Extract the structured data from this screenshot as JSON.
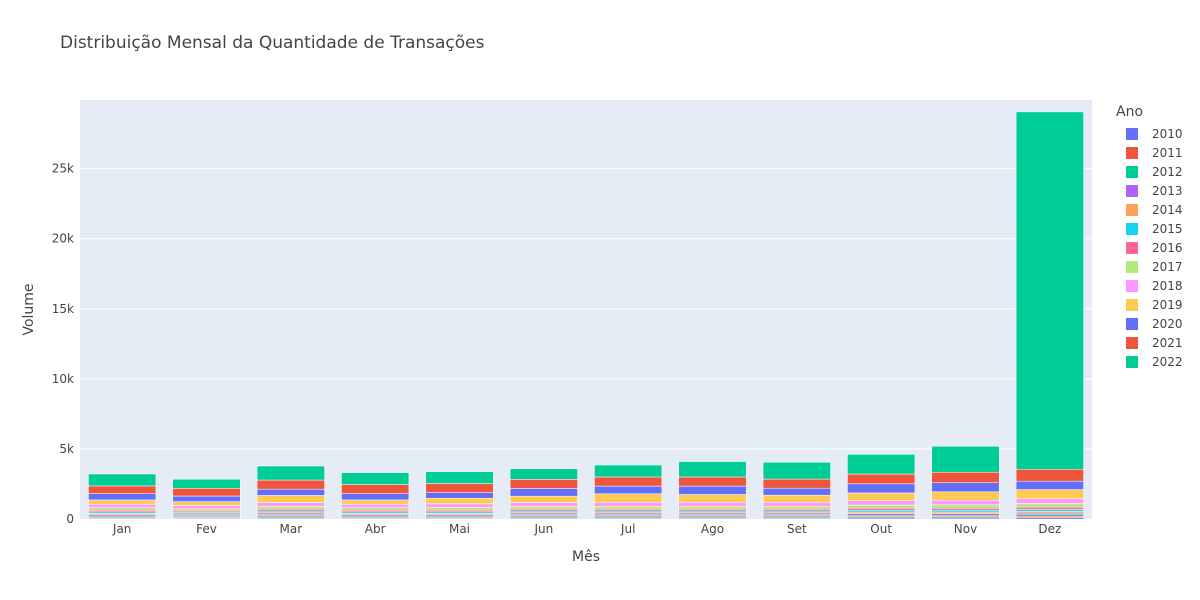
{
  "chart_data": {
    "type": "bar",
    "stacked": true,
    "title": "Distribuição Mensal da Quantidade de Transações",
    "xlabel": "Mês",
    "ylabel": "Volume",
    "legend_title": "Ano",
    "legend_position": "right",
    "grid": true,
    "ylim": [
      0,
      29900
    ],
    "yticks": [
      0,
      5000,
      10000,
      15000,
      20000,
      25000
    ],
    "ytick_labels": [
      "0",
      "5k",
      "10k",
      "15k",
      "20k",
      "25k"
    ],
    "categories": [
      "Jan",
      "Fev",
      "Mar",
      "Abr",
      "Mai",
      "Jun",
      "Jul",
      "Ago",
      "Set",
      "Out",
      "Nov",
      "Dez"
    ],
    "series": [
      {
        "name": "2010",
        "color": "#636efa",
        "values": [
          60,
          60,
          70,
          60,
          60,
          70,
          70,
          70,
          70,
          80,
          80,
          90
        ]
      },
      {
        "name": "2011",
        "color": "#ef553b",
        "values": [
          70,
          60,
          80,
          70,
          70,
          80,
          80,
          80,
          80,
          90,
          90,
          100
        ]
      },
      {
        "name": "2012",
        "color": "#00cc96",
        "values": [
          80,
          70,
          90,
          80,
          80,
          90,
          90,
          90,
          90,
          100,
          100,
          110
        ]
      },
      {
        "name": "2013",
        "color": "#ab63fa",
        "values": [
          90,
          80,
          100,
          90,
          90,
          100,
          100,
          100,
          100,
          110,
          110,
          120
        ]
      },
      {
        "name": "2014",
        "color": "#ffa15a",
        "values": [
          100,
          90,
          110,
          100,
          100,
          110,
          110,
          110,
          110,
          120,
          120,
          130
        ]
      },
      {
        "name": "2015",
        "color": "#19d3f3",
        "values": [
          110,
          100,
          120,
          110,
          110,
          120,
          120,
          120,
          120,
          130,
          130,
          140
        ]
      },
      {
        "name": "2016",
        "color": "#ff6692",
        "values": [
          120,
          110,
          130,
          120,
          120,
          130,
          130,
          130,
          130,
          140,
          140,
          150
        ]
      },
      {
        "name": "2017",
        "color": "#b6e880",
        "values": [
          180,
          160,
          200,
          180,
          190,
          200,
          210,
          210,
          210,
          230,
          240,
          260
        ]
      },
      {
        "name": "2018",
        "color": "#ff97ff",
        "values": [
          250,
          230,
          280,
          250,
          260,
          280,
          290,
          290,
          290,
          310,
          330,
          350
        ]
      },
      {
        "name": "2019",
        "color": "#fecb52",
        "values": [
          300,
          280,
          500,
          300,
          400,
          450,
          600,
          550,
          500,
          550,
          600,
          650
        ]
      },
      {
        "name": "2020",
        "color": "#636efa",
        "values": [
          450,
          400,
          450,
          450,
          400,
          550,
          550,
          600,
          500,
          650,
          650,
          600
        ]
      },
      {
        "name": "2021",
        "color": "#ef553b",
        "values": [
          550,
          550,
          650,
          650,
          650,
          650,
          650,
          650,
          650,
          700,
          750,
          850
        ]
      },
      {
        "name": "2022",
        "color": "#00cc96",
        "values": [
          850,
          650,
          1000,
          850,
          850,
          750,
          850,
          1100,
          1200,
          1400,
          1850,
          25500
        ]
      }
    ]
  }
}
